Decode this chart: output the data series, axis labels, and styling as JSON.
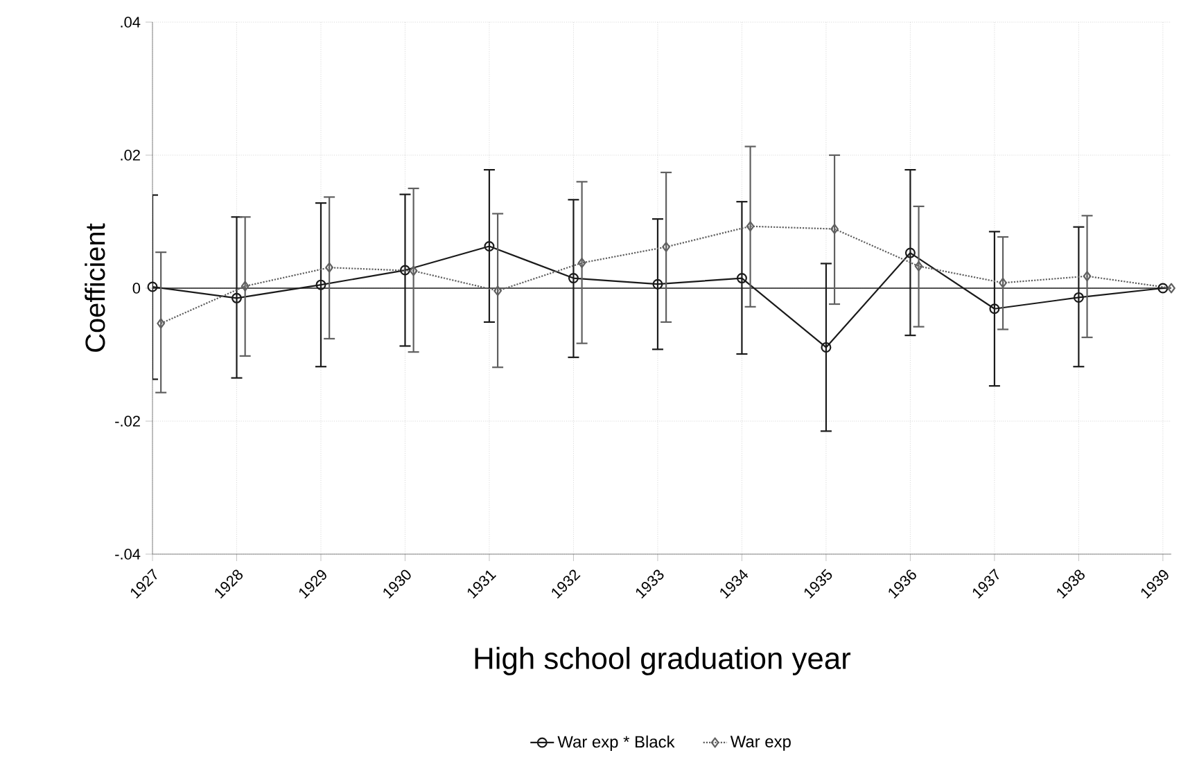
{
  "chart_data": {
    "type": "line",
    "xlabel": "High school graduation year",
    "ylabel": "Coefficient",
    "x": [
      1927,
      1928,
      1929,
      1930,
      1931,
      1932,
      1933,
      1934,
      1935,
      1936,
      1937,
      1938,
      1939
    ],
    "xlim": [
      1927,
      1939.1
    ],
    "xticks": [
      1927,
      1928,
      1929,
      1930,
      1931,
      1932,
      1933,
      1934,
      1935,
      1936,
      1937,
      1938,
      1939
    ],
    "ylim": [
      -0.04,
      0.04
    ],
    "yticks": [
      {
        "value": -0.04,
        "label": "-.04"
      },
      {
        "value": -0.02,
        "label": "-.02"
      },
      0,
      {
        "value": 0.02,
        "label": ".02"
      },
      {
        "value": 0.04,
        "label": ".04"
      }
    ],
    "grid": true,
    "legend": "bottom",
    "ref_lines": [
      {
        "axis": "y",
        "value": 0,
        "color": "#1a1a1a",
        "line_style": "solid"
      }
    ],
    "series": [
      {
        "name": "War exp * Black",
        "color": "#1a1a1a",
        "marker": "circle",
        "line_style": "solid",
        "values": [
          0.0002,
          -0.0015,
          0.0005,
          0.0027,
          0.0063,
          0.0015,
          0.0006,
          0.0015,
          -0.0089,
          0.0053,
          -0.0031,
          -0.0014,
          0
        ],
        "errors": [
          [
            -0.0137,
            0.014
          ],
          [
            -0.0135,
            0.0107
          ],
          [
            -0.0118,
            0.0128
          ],
          [
            -0.0087,
            0.0141
          ],
          [
            -0.0051,
            0.0178
          ],
          [
            -0.0104,
            0.0133
          ],
          [
            -0.0092,
            0.0104
          ],
          [
            -0.0099,
            0.013
          ],
          [
            -0.0215,
            0.0037
          ],
          [
            -0.0071,
            0.0178
          ],
          [
            -0.0147,
            0.0085
          ],
          [
            -0.0118,
            0.0092
          ],
          null
        ]
      },
      {
        "name": "War exp",
        "color": "#606060",
        "marker": "diamond",
        "line_style": "dotted",
        "x": [
          1927.1,
          1928.1,
          1929.1,
          1930.1,
          1931.1,
          1932.1,
          1933.1,
          1934.1,
          1935.1,
          1936.1,
          1937.1,
          1938.1,
          1939.1
        ],
        "values": [
          -0.0053,
          0.0003,
          0.0031,
          0.0026,
          -0.0004,
          0.0038,
          0.0062,
          0.0093,
          0.0089,
          0.0033,
          0.0008,
          0.0018,
          0
        ],
        "errors": [
          [
            -0.0157,
            0.0054
          ],
          [
            -0.0102,
            0.0107
          ],
          [
            -0.0076,
            0.0137
          ],
          [
            -0.0096,
            0.015
          ],
          [
            -0.0119,
            0.0112
          ],
          [
            -0.0083,
            0.016
          ],
          [
            -0.0051,
            0.0174
          ],
          [
            -0.0028,
            0.0213
          ],
          [
            -0.0024,
            0.02
          ],
          [
            -0.0058,
            0.0123
          ],
          [
            -0.0062,
            0.0077
          ],
          [
            -0.0074,
            0.0109
          ],
          null
        ]
      }
    ]
  }
}
